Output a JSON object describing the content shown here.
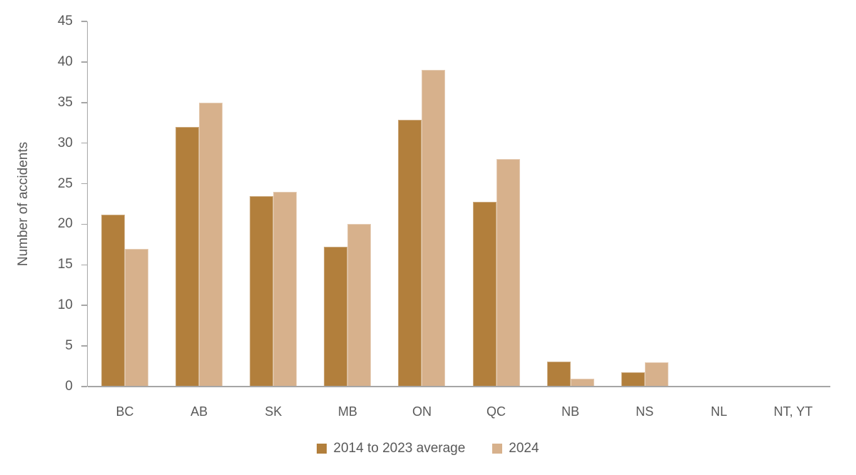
{
  "chart_data": {
    "type": "bar",
    "title": "",
    "ylabel": "Number of accidents",
    "xlabel": "",
    "ylim": [
      0,
      45
    ],
    "yticks": [
      0,
      5,
      10,
      15,
      20,
      25,
      30,
      35,
      40,
      45
    ],
    "categories": [
      "BC",
      "AB",
      "SK",
      "MB",
      "ON",
      "QC",
      "NB",
      "NS",
      "NL",
      "NT, YT"
    ],
    "series": [
      {
        "name": "2014 to 2023 average",
        "color": "#B27F3C",
        "values": [
          21.2,
          32,
          23.5,
          17.2,
          32.9,
          22.8,
          3.1,
          1.8,
          0,
          0
        ]
      },
      {
        "name": "2024",
        "color": "#D7B18C",
        "values": [
          17,
          35,
          24,
          20,
          39,
          28,
          1,
          3,
          0,
          0
        ]
      }
    ],
    "legend_position": "bottom",
    "grid": false,
    "axis_color": "#A6A6A6",
    "text_color": "#595959"
  }
}
